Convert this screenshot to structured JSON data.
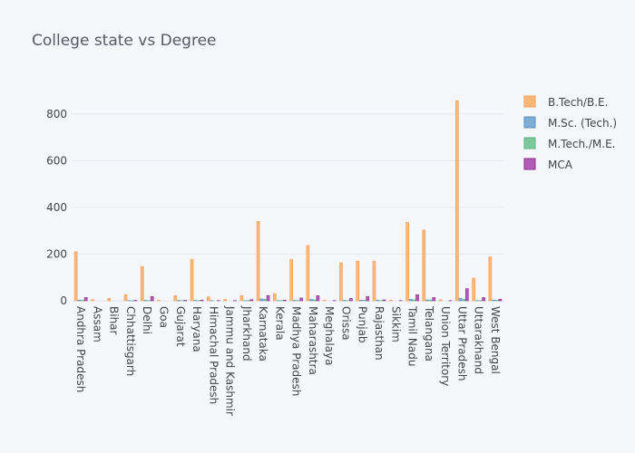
{
  "chart_data": {
    "type": "bar",
    "title": "College state vs Degree",
    "xlabel": "",
    "ylabel": "",
    "ylim": [
      0,
      900
    ],
    "yticks": [
      0,
      200,
      400,
      600,
      800
    ],
    "grid": true,
    "legend_position": "top-right",
    "categories": [
      "Andhra Pradesh",
      "Assam",
      "Bihar",
      "Chhattisgarh",
      "Delhi",
      "Goa",
      "Gujarat",
      "Haryana",
      "Himachal Pradesh",
      "Jammu and Kashmir",
      "Jharkhand",
      "Karnataka",
      "Kerala",
      "Madhya Pradesh",
      "Maharashtra",
      "Meghalaya",
      "Orissa",
      "Punjab",
      "Rajasthan",
      "Sikkim",
      "Tamil Nadu",
      "Telangana",
      "Union Territory",
      "Uttar Pradesh",
      "Uttarakhand",
      "West Bengal"
    ],
    "series": [
      {
        "name": "B.Tech/B.E.",
        "color": "#fdb877",
        "stroke": "#f5a05a",
        "values": [
          210,
          5,
          10,
          26,
          147,
          2,
          22,
          178,
          17,
          6,
          22,
          340,
          31,
          178,
          237,
          2,
          163,
          170,
          170,
          3,
          336,
          303,
          4,
          857,
          97,
          188
        ]
      },
      {
        "name": "M.Sc. (Tech.)",
        "color": "#7fadd6",
        "stroke": "#5a90c4",
        "values": [
          3,
          0,
          0,
          1,
          2,
          0,
          2,
          2,
          1,
          0,
          1,
          8,
          1,
          2,
          6,
          0,
          2,
          3,
          2,
          0,
          6,
          4,
          0,
          10,
          1,
          3
        ]
      },
      {
        "name": "M.Tech./M.E.",
        "color": "#7dc99b",
        "stroke": "#58b27e",
        "values": [
          2,
          0,
          0,
          1,
          1,
          0,
          1,
          1,
          0,
          0,
          1,
          6,
          1,
          1,
          4,
          0,
          1,
          2,
          1,
          0,
          4,
          3,
          0,
          6,
          1,
          2
        ]
      },
      {
        "name": "MCA",
        "color": "#b45ab9",
        "stroke": "#8b2f92",
        "values": [
          14,
          0,
          0,
          2,
          18,
          0,
          2,
          3,
          1,
          1,
          5,
          22,
          3,
          12,
          22,
          1,
          10,
          18,
          4,
          1,
          26,
          14,
          1,
          52,
          14,
          7
        ]
      }
    ]
  }
}
